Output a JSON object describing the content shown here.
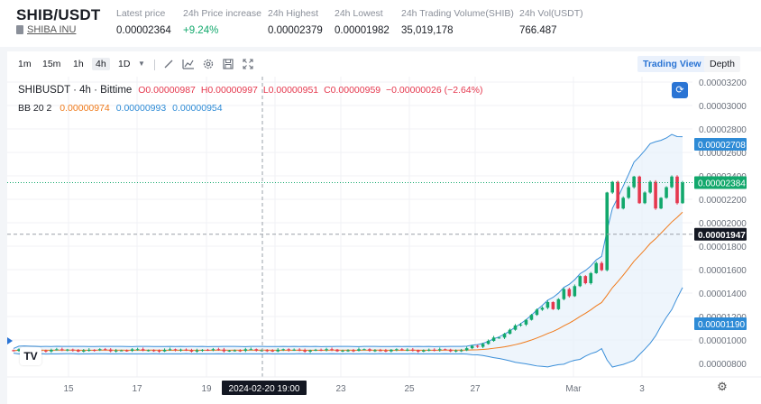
{
  "header": {
    "pair": "SHIB/USDT",
    "coin_name": "SHIBA INU",
    "stats": [
      {
        "label": "Latest price",
        "value": "0.00002364",
        "color": "default"
      },
      {
        "label": "24h Price increase",
        "value": "+9.24%",
        "color": "green"
      },
      {
        "label": "24h Highest",
        "value": "0.00002379",
        "color": "default"
      },
      {
        "label": "24h Lowest",
        "value": "0.00001982",
        "color": "default"
      },
      {
        "label": "24h Trading Volume(SHIB)",
        "value": "35,019,178",
        "color": "default"
      },
      {
        "label": "24h Vol(USDT)",
        "value": "766.487",
        "color": "default"
      }
    ]
  },
  "toolbar": {
    "timeframes": [
      "1m",
      "15m",
      "1h",
      "4h",
      "1D"
    ],
    "active_timeframe": "4h",
    "icons": [
      "dropdown-icon",
      "draw-line-icon",
      "indicator-icon",
      "settings-icon",
      "snapshot-icon",
      "fullscreen-icon"
    ],
    "views": [
      "Trading View",
      "Depth"
    ],
    "active_view": "Trading View"
  },
  "legend": {
    "symbol": "SHIBUSDT · 4h · Bittime",
    "open": "O0.00000987",
    "high": "H0.00000997",
    "low": "L0.00000951",
    "close": "C0.00000959",
    "change": "−0.00000026 (−2.64%)",
    "bb_name": "BB 20 2",
    "bb_basis": "0.00000974",
    "bb_upper": "0.00000993",
    "bb_lower": "0.00000954"
  },
  "chart_data": {
    "type": "candlestick",
    "y_axis_labels": [
      "0.00003200",
      "0.00003000",
      "0.00002800",
      "0.00002600",
      "0.00002400",
      "0.00002200",
      "0.00002000",
      "0.00001800",
      "0.00001600",
      "0.00001400",
      "0.00001200",
      "0.00001000",
      "0.00000800"
    ],
    "x_axis_labels": [
      "15",
      "17",
      "19",
      "23",
      "25",
      "27",
      "Mar",
      "3"
    ],
    "crosshair_x_label": "2024-02-20  19:00",
    "crosshair_y_label": "0.00001947",
    "crosshair_y_value": 1.947e-05,
    "price_tags": [
      {
        "label": "0.00002708",
        "value": 2.708e-05,
        "color": "#2e8bd6",
        "series": "BB upper"
      },
      {
        "label": "0.00002384",
        "value": 2.384e-05,
        "color": "#12a86c",
        "series": "last price"
      },
      {
        "label": "0.00001190",
        "value": 1.19e-05,
        "color": "#2e8bd6",
        "series": "BB lower"
      }
    ],
    "ylim": [
      7.4e-06,
      3.28e-05
    ],
    "series_colors": {
      "up": "#12a86c",
      "down": "#e5384e",
      "bb_upper": "#3b8fd9",
      "bb_lower": "#3b8fd9",
      "bb_basis": "#f07a1a",
      "bb_fill": "#e7f1fb"
    }
  }
}
